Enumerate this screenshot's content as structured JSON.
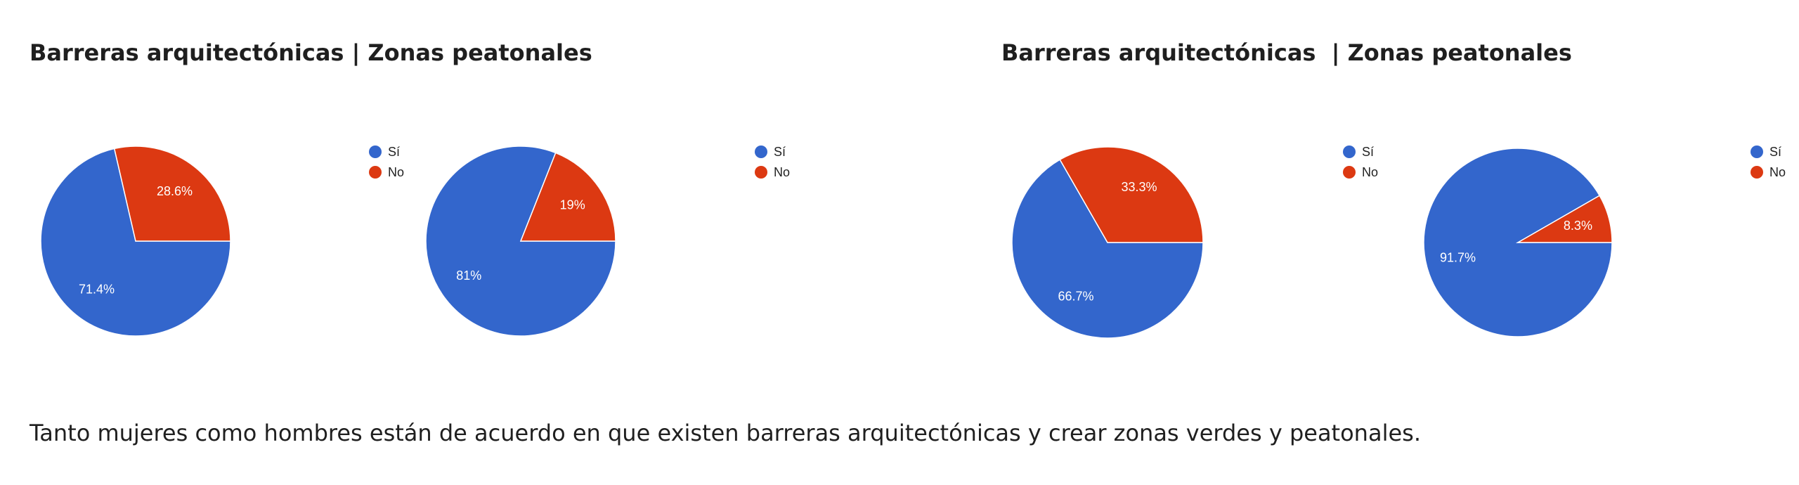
{
  "headings": [
    "Barreras arquitectónicas | Zonas peatonales",
    "Barreras arquitectónicas  | Zonas peatonales"
  ],
  "text": "Tanto mujeres como hombres están de acuerdo en que existen barreras arquitectónicas y crear zonas verdes y peatonales.",
  "chart_data": [
    {
      "type": "pie",
      "categories": [
        "Sí",
        "No"
      ],
      "values": [
        71.4,
        28.6
      ],
      "value_labels": [
        "71.4%",
        "28.6%"
      ],
      "colors": [
        "#3366cc",
        "#dc3912"
      ],
      "legend": "right"
    },
    {
      "type": "pie",
      "categories": [
        "Sí",
        "No"
      ],
      "values": [
        81,
        19
      ],
      "value_labels": [
        "81%",
        "19%"
      ],
      "colors": [
        "#3366cc",
        "#dc3912"
      ],
      "legend": "right"
    },
    {
      "type": "pie",
      "categories": [
        "Sí",
        "No"
      ],
      "values": [
        66.7,
        33.3
      ],
      "value_labels": [
        "66.7%",
        "33.3%"
      ],
      "colors": [
        "#3366cc",
        "#dc3912"
      ],
      "legend": "right"
    },
    {
      "type": "pie",
      "categories": [
        "Sí",
        "No"
      ],
      "values": [
        91.7,
        8.3
      ],
      "value_labels": [
        "91.7%",
        "8.3%"
      ],
      "colors": [
        "#3366cc",
        "#dc3912"
      ],
      "legend": "right"
    }
  ]
}
